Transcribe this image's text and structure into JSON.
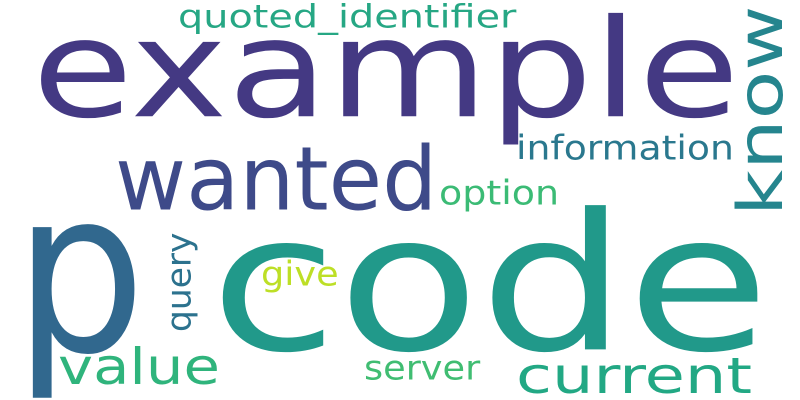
{
  "words": [
    {
      "id": "p",
      "text": "p",
      "color": "#31688e",
      "rotated": false
    },
    {
      "id": "code",
      "text": "code",
      "color": "#21998a",
      "rotated": false
    },
    {
      "id": "example",
      "text": "example",
      "color": "#443983",
      "rotated": false
    },
    {
      "id": "wanted",
      "text": "wanted",
      "color": "#3e4a89",
      "rotated": false
    },
    {
      "id": "know",
      "text": "know",
      "color": "#25858e",
      "rotated": true
    },
    {
      "id": "current",
      "text": "current",
      "color": "#22a884",
      "rotated": false
    },
    {
      "id": "value",
      "text": "value",
      "color": "#2fb47c",
      "rotated": false
    },
    {
      "id": "quoted-identifier",
      "text": "quoted_identifier",
      "color": "#26a784",
      "rotated": false
    },
    {
      "id": "information",
      "text": "information",
      "color": "#2a788e",
      "rotated": false
    },
    {
      "id": "option",
      "text": "option",
      "color": "#3bbb75",
      "rotated": false
    },
    {
      "id": "server",
      "text": "server",
      "color": "#40bd72",
      "rotated": false
    },
    {
      "id": "query",
      "text": "query",
      "color": "#2c728e",
      "rotated": true
    },
    {
      "id": "give",
      "text": "give",
      "color": "#bddf26",
      "rotated": false
    }
  ]
}
